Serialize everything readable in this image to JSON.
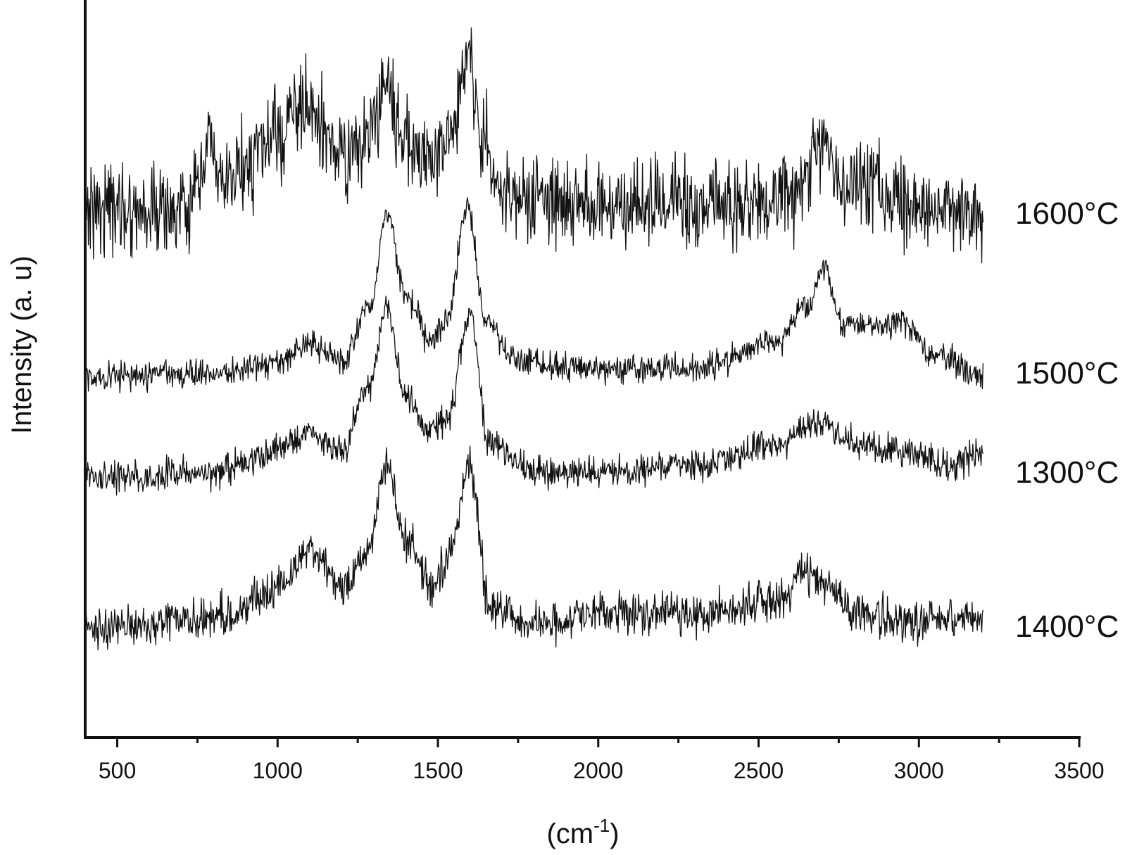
{
  "chart_data": {
    "type": "line",
    "title": "",
    "xlabel": "(cm",
    "xlabel_superscript": "-1",
    "xlabel_close": ")",
    "ylabel": "Intensity   (a. u)",
    "xlim": [
      400,
      3500
    ],
    "ylim": [
      0,
      100
    ],
    "x_ticks": [
      500,
      1000,
      1500,
      2000,
      2500,
      3000,
      3500
    ],
    "x_tick_labels": [
      "500",
      "1000",
      "1500",
      "2000",
      "2500",
      "3000",
      "3500"
    ],
    "x_minor_ticks": [
      750,
      1250,
      1750,
      2250,
      2750,
      3250
    ],
    "y_ticks_shown": false,
    "grid": false,
    "legend": "inline-right",
    "line_color": "#111111",
    "x_range": [
      400,
      3200
    ],
    "series": [
      {
        "name": "1600°C",
        "baseline": 72,
        "noise": 3.2,
        "points": [
          [
            400,
            73
          ],
          [
            700,
            72
          ],
          [
            760,
            75
          ],
          [
            790,
            84
          ],
          [
            820,
            75
          ],
          [
            900,
            79
          ],
          [
            1000,
            83
          ],
          [
            1080,
            88
          ],
          [
            1120,
            85
          ],
          [
            1200,
            80
          ],
          [
            1280,
            82
          ],
          [
            1340,
            92
          ],
          [
            1380,
            84
          ],
          [
            1450,
            80
          ],
          [
            1540,
            82
          ],
          [
            1590,
            97
          ],
          [
            1640,
            83
          ],
          [
            1700,
            74
          ],
          [
            2000,
            73
          ],
          [
            2500,
            73
          ],
          [
            2600,
            75
          ],
          [
            2700,
            82
          ],
          [
            2760,
            76
          ],
          [
            2900,
            75
          ],
          [
            3000,
            73
          ],
          [
            3200,
            72
          ]
        ]
      },
      {
        "name": "1500°C",
        "baseline": 48,
        "noise": 1.0,
        "points": [
          [
            400,
            48
          ],
          [
            800,
            48.5
          ],
          [
            1000,
            50
          ],
          [
            1100,
            53
          ],
          [
            1200,
            50
          ],
          [
            1290,
            58
          ],
          [
            1340,
            72
          ],
          [
            1400,
            60
          ],
          [
            1480,
            53
          ],
          [
            1530,
            56
          ],
          [
            1590,
            73
          ],
          [
            1650,
            56
          ],
          [
            1750,
            50
          ],
          [
            2000,
            49
          ],
          [
            2300,
            49
          ],
          [
            2550,
            53
          ],
          [
            2650,
            58
          ],
          [
            2700,
            64
          ],
          [
            2760,
            56
          ],
          [
            2900,
            55
          ],
          [
            2950,
            56
          ],
          [
            3050,
            51
          ],
          [
            3200,
            48
          ]
        ]
      },
      {
        "name": "1300°C",
        "baseline": 33,
        "noise": 1.1,
        "points": [
          [
            400,
            33
          ],
          [
            800,
            34
          ],
          [
            1000,
            37
          ],
          [
            1100,
            40
          ],
          [
            1200,
            37
          ],
          [
            1290,
            47
          ],
          [
            1340,
            58
          ],
          [
            1400,
            45
          ],
          [
            1470,
            40
          ],
          [
            1530,
            42
          ],
          [
            1600,
            57
          ],
          [
            1660,
            38
          ],
          [
            1800,
            34
          ],
          [
            2000,
            34
          ],
          [
            2300,
            35
          ],
          [
            2550,
            38
          ],
          [
            2700,
            41
          ],
          [
            2800,
            38
          ],
          [
            2950,
            37
          ],
          [
            3100,
            35
          ],
          [
            3200,
            37
          ]
        ]
      },
      {
        "name": "1400°C",
        "baseline": 11,
        "noise": 1.5,
        "points": [
          [
            400,
            11
          ],
          [
            700,
            12
          ],
          [
            850,
            13
          ],
          [
            1000,
            17
          ],
          [
            1100,
            23
          ],
          [
            1200,
            17
          ],
          [
            1280,
            22
          ],
          [
            1340,
            35
          ],
          [
            1400,
            24
          ],
          [
            1480,
            17
          ],
          [
            1530,
            21
          ],
          [
            1600,
            35
          ],
          [
            1660,
            14
          ],
          [
            1800,
            12
          ],
          [
            2000,
            13
          ],
          [
            2300,
            13
          ],
          [
            2550,
            15
          ],
          [
            2650,
            19
          ],
          [
            2700,
            18
          ],
          [
            2800,
            13
          ],
          [
            3000,
            12
          ],
          [
            3200,
            13
          ]
        ]
      }
    ]
  }
}
